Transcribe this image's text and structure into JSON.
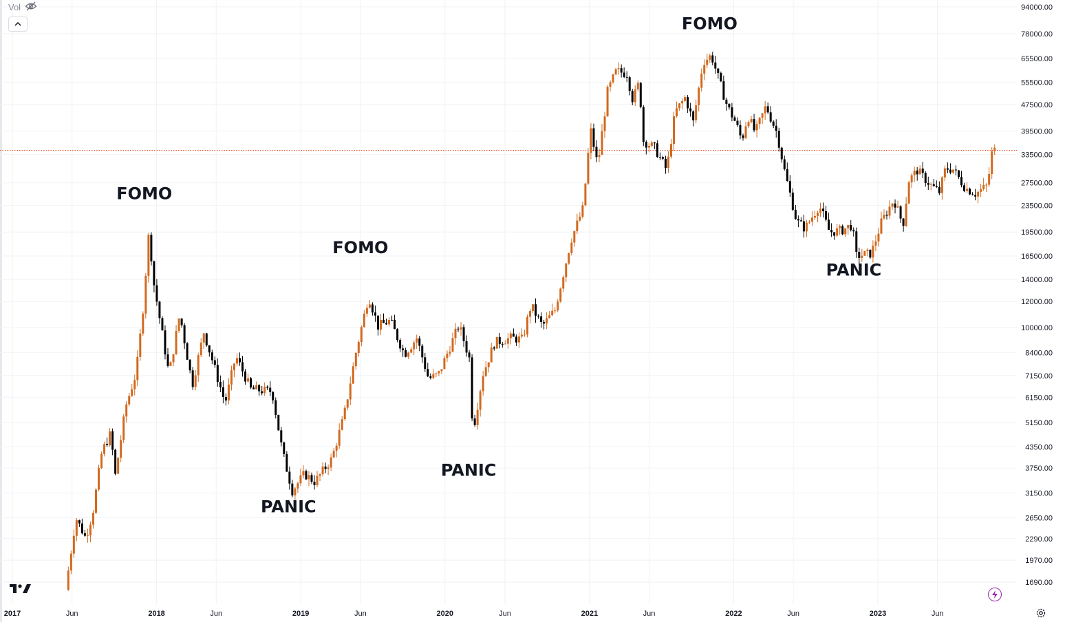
{
  "toolbar": {
    "volume_label": "Vol",
    "volume_visibility_icon": "eye-crossed-icon",
    "collapse_icon": "chevron-up-icon"
  },
  "logo_icon": "tradingview-logo-icon",
  "quick_action_icon": "lightning-icon",
  "settings_icon": "gear-icon",
  "colors": {
    "up": "#D2691E",
    "down": "#000000",
    "grid": "#f0f2f5",
    "price_line": "#e4572e",
    "axis_text": "#131722",
    "bolt": "#9c27b0"
  },
  "chart_data": {
    "type": "candlestick",
    "scale": "log",
    "grid": true,
    "y_ticks": [
      "94000.00",
      "78000.00",
      "65500.00",
      "55500.00",
      "47500.00",
      "39500.00",
      "33500.00",
      "27500.00",
      "23500.00",
      "19500.00",
      "16500.00",
      "14000.00",
      "12000.00",
      "10000.00",
      "8400.00",
      "7150.00",
      "6150.00",
      "5150.00",
      "4350.00",
      "3750.00",
      "3150.00",
      "2650.00",
      "2290.00",
      "1970.00",
      "1690.00"
    ],
    "x_ticks": [
      {
        "label": "2017",
        "date": "2017-01",
        "bold": true
      },
      {
        "label": "Jun",
        "date": "2017-06",
        "bold": false
      },
      {
        "label": "2018",
        "date": "2018-01",
        "bold": true
      },
      {
        "label": "Jun",
        "date": "2018-06",
        "bold": false
      },
      {
        "label": "2019",
        "date": "2019-01",
        "bold": true
      },
      {
        "label": "Jun",
        "date": "2019-06",
        "bold": false
      },
      {
        "label": "2020",
        "date": "2020-01",
        "bold": true
      },
      {
        "label": "Jun",
        "date": "2020-06",
        "bold": false
      },
      {
        "label": "2021",
        "date": "2021-01",
        "bold": true
      },
      {
        "label": "Jun",
        "date": "2021-06",
        "bold": false
      },
      {
        "label": "2022",
        "date": "2022-01",
        "bold": true
      },
      {
        "label": "Jun",
        "date": "2022-06",
        "bold": false
      },
      {
        "label": "2023",
        "date": "2023-01",
        "bold": true
      },
      {
        "label": "Jun",
        "date": "2023-06",
        "bold": false
      }
    ],
    "last_price": 34500,
    "annotations": [
      {
        "text": "FOMO",
        "date": "2017-12",
        "value": 24500
      },
      {
        "text": "PANIC",
        "date": "2018-12",
        "value": 2750
      },
      {
        "text": "FOMO",
        "date": "2019-06",
        "value": 16800
      },
      {
        "text": "PANIC",
        "date": "2020-03",
        "value": 3550
      },
      {
        "text": "FOMO",
        "date": "2021-11",
        "value": 80500
      },
      {
        "text": "PANIC",
        "date": "2022-11",
        "value": 14400
      }
    ],
    "path": [
      [
        "2017-05-20",
        1600
      ],
      [
        "2017-06-15",
        2650
      ],
      [
        "2017-07-10",
        2300
      ],
      [
        "2017-07-28",
        2750
      ],
      [
        "2017-08-20",
        4200
      ],
      [
        "2017-09-12",
        4800
      ],
      [
        "2017-09-22",
        3500
      ],
      [
        "2017-10-20",
        5800
      ],
      [
        "2017-11-15",
        7300
      ],
      [
        "2017-12-01",
        11000
      ],
      [
        "2017-12-17",
        19500
      ],
      [
        "2017-12-30",
        13500
      ],
      [
        "2018-02-06",
        7200
      ],
      [
        "2018-03-05",
        11000
      ],
      [
        "2018-04-06",
        6700
      ],
      [
        "2018-05-05",
        9700
      ],
      [
        "2018-06-28",
        5900
      ],
      [
        "2018-07-25",
        8200
      ],
      [
        "2018-09-01",
        6500
      ],
      [
        "2018-10-25",
        6400
      ],
      [
        "2018-11-20",
        4200
      ],
      [
        "2018-12-15",
        3200
      ],
      [
        "2019-01-15",
        3600
      ],
      [
        "2019-02-10",
        3400
      ],
      [
        "2019-03-25",
        4000
      ],
      [
        "2019-04-25",
        5400
      ],
      [
        "2019-05-25",
        8400
      ],
      [
        "2019-06-26",
        12500
      ],
      [
        "2019-07-20",
        10100
      ],
      [
        "2019-08-20",
        10500
      ],
      [
        "2019-09-25",
        8300
      ],
      [
        "2019-10-26",
        9300
      ],
      [
        "2019-11-25",
        7000
      ],
      [
        "2019-12-20",
        7200
      ],
      [
        "2020-02-10",
        10200
      ],
      [
        "2020-03-08",
        8000
      ],
      [
        "2020-03-16",
        4800
      ],
      [
        "2020-04-10",
        7200
      ],
      [
        "2020-05-10",
        9000
      ],
      [
        "2020-06-20",
        9300
      ],
      [
        "2020-07-20",
        9200
      ],
      [
        "2020-08-10",
        11700
      ],
      [
        "2020-09-08",
        10100
      ],
      [
        "2020-10-10",
        11300
      ],
      [
        "2020-11-20",
        18500
      ],
      [
        "2020-12-20",
        23000
      ],
      [
        "2021-01-08",
        40000
      ],
      [
        "2021-01-26",
        31000
      ],
      [
        "2021-02-20",
        52000
      ],
      [
        "2021-03-14",
        60000
      ],
      [
        "2021-04-10",
        59000
      ],
      [
        "2021-04-25",
        49000
      ],
      [
        "2021-05-12",
        56000
      ],
      [
        "2021-05-20",
        37000
      ],
      [
        "2021-06-20",
        35000
      ],
      [
        "2021-07-20",
        30000
      ],
      [
        "2021-08-10",
        45000
      ],
      [
        "2021-09-05",
        50000
      ],
      [
        "2021-09-25",
        42000
      ],
      [
        "2021-10-20",
        64000
      ],
      [
        "2021-11-10",
        67000
      ],
      [
        "2021-11-28",
        57000
      ],
      [
        "2021-12-20",
        47000
      ],
      [
        "2022-01-10",
        42000
      ],
      [
        "2022-01-26",
        37000
      ],
      [
        "2022-02-10",
        44000
      ],
      [
        "2022-03-01",
        39000
      ],
      [
        "2022-03-28",
        47000
      ],
      [
        "2022-04-25",
        39000
      ],
      [
        "2022-05-15",
        29500
      ],
      [
        "2022-06-14",
        21000
      ],
      [
        "2022-07-05",
        20000
      ],
      [
        "2022-08-10",
        23500
      ],
      [
        "2022-09-05",
        19500
      ],
      [
        "2022-10-05",
        19700
      ],
      [
        "2022-11-01",
        20500
      ],
      [
        "2022-11-12",
        16500
      ],
      [
        "2022-12-20",
        16800
      ],
      [
        "2023-01-15",
        21000
      ],
      [
        "2023-02-15",
        24500
      ],
      [
        "2023-03-10",
        20500
      ],
      [
        "2023-03-25",
        28000
      ],
      [
        "2023-04-15",
        30000
      ],
      [
        "2023-05-20",
        27000
      ],
      [
        "2023-06-10",
        25800
      ],
      [
        "2023-06-26",
        30500
      ],
      [
        "2023-07-15",
        30200
      ],
      [
        "2023-08-15",
        26500
      ],
      [
        "2023-09-10",
        25500
      ],
      [
        "2023-10-10",
        27000
      ],
      [
        "2023-10-22",
        34500
      ]
    ]
  }
}
